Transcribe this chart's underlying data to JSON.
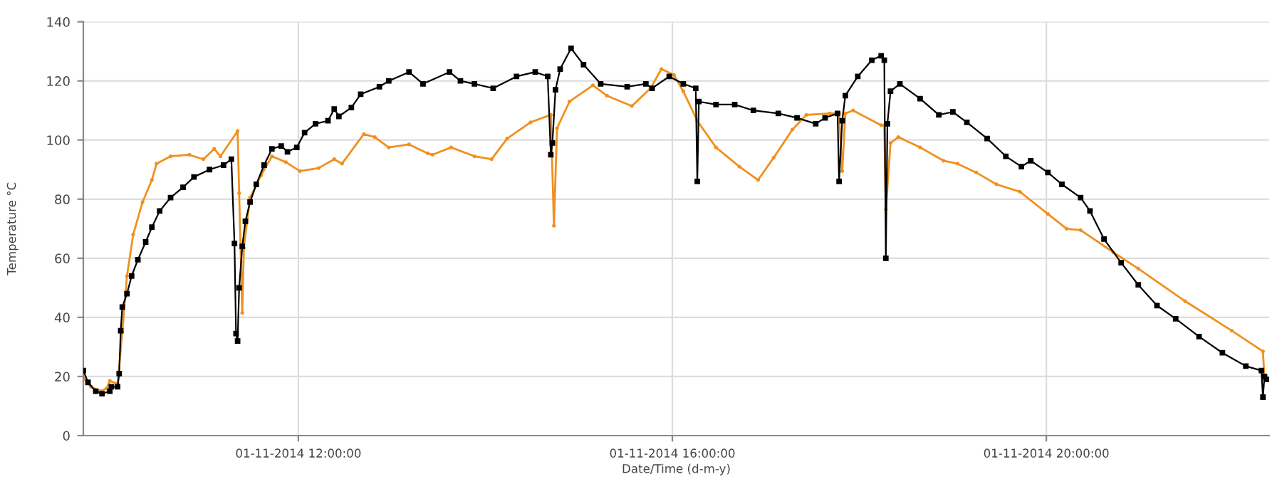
{
  "chart_data": {
    "type": "line",
    "xlabel": "Date/Time (d-m-y)",
    "ylabel": "Temperature °C",
    "xlim": [
      "2014-11-01T09:42",
      "2014-11-01T22:23"
    ],
    "xticks": [
      {
        "value": "2014-11-01T12:00",
        "label": "01-11-2014 12:00:00"
      },
      {
        "value": "2014-11-01T16:00",
        "label": "01-11-2014 16:00:00"
      },
      {
        "value": "2014-11-01T20:00",
        "label": "01-11-2014 20:00:00"
      }
    ],
    "ylim": [
      0,
      140
    ],
    "yticks": [
      0,
      20,
      40,
      60,
      80,
      100,
      120,
      140
    ],
    "grid": true,
    "line_style": "solid",
    "series": [
      {
        "color": "#000000",
        "marker": "square",
        "x": [
          "2014-11-01T09:42",
          "2014-11-01T09:45",
          "2014-11-01T09:50",
          "2014-11-01T09:54",
          "2014-11-01T09:59",
          "2014-11-01T10:00",
          "2014-11-01T10:04",
          "2014-11-01T10:05",
          "2014-11-01T10:06",
          "2014-11-01T10:07",
          "2014-11-01T10:10",
          "2014-11-01T10:13",
          "2014-11-01T10:17",
          "2014-11-01T10:22",
          "2014-11-01T10:26",
          "2014-11-01T10:31",
          "2014-11-01T10:38",
          "2014-11-01T10:46",
          "2014-11-01T10:53",
          "2014-11-01T11:03",
          "2014-11-01T11:12",
          "2014-11-01T11:17",
          "2014-11-01T11:19",
          "2014-11-01T11:20",
          "2014-11-01T11:21",
          "2014-11-01T11:22",
          "2014-11-01T11:24",
          "2014-11-01T11:26",
          "2014-11-01T11:29",
          "2014-11-01T11:33",
          "2014-11-01T11:38",
          "2014-11-01T11:43",
          "2014-11-01T11:49",
          "2014-11-01T11:53",
          "2014-11-01T11:59",
          "2014-11-01T12:04",
          "2014-11-01T12:11",
          "2014-11-01T12:19",
          "2014-11-01T12:23",
          "2014-11-01T12:26",
          "2014-11-01T12:34",
          "2014-11-01T12:40",
          "2014-11-01T12:52",
          "2014-11-01T12:58",
          "2014-11-01T13:11",
          "2014-11-01T13:20",
          "2014-11-01T13:37",
          "2014-11-01T13:44",
          "2014-11-01T13:53",
          "2014-11-01T14:05",
          "2014-11-01T14:20",
          "2014-11-01T14:32",
          "2014-11-01T14:40",
          "2014-11-01T14:42",
          "2014-11-01T14:43",
          "2014-11-01T14:45",
          "2014-11-01T14:48",
          "2014-11-01T14:55",
          "2014-11-01T15:03",
          "2014-11-01T15:14",
          "2014-11-01T15:31",
          "2014-11-01T15:43",
          "2014-11-01T15:47",
          "2014-11-01T15:58",
          "2014-11-01T16:07",
          "2014-11-01T16:15",
          "2014-11-01T16:16",
          "2014-11-01T16:17",
          "2014-11-01T16:28",
          "2014-11-01T16:40",
          "2014-11-01T16:52",
          "2014-11-01T17:08",
          "2014-11-01T17:20",
          "2014-11-01T17:32",
          "2014-11-01T17:38",
          "2014-11-01T17:46",
          "2014-11-01T17:47",
          "2014-11-01T17:49",
          "2014-11-01T17:51",
          "2014-11-01T17:59",
          "2014-11-01T18:08",
          "2014-11-01T18:14",
          "2014-11-01T18:16",
          "2014-11-01T18:17",
          "2014-11-01T18:18",
          "2014-11-01T18:20",
          "2014-11-01T18:26",
          "2014-11-01T18:39",
          "2014-11-01T18:51",
          "2014-11-01T19:00",
          "2014-11-01T19:09",
          "2014-11-01T19:22",
          "2014-11-01T19:34",
          "2014-11-01T19:44",
          "2014-11-01T19:50",
          "2014-11-01T20:01",
          "2014-11-01T20:10",
          "2014-11-01T20:22",
          "2014-11-01T20:28",
          "2014-11-01T20:37",
          "2014-11-01T20:48",
          "2014-11-01T20:59",
          "2014-11-01T21:11",
          "2014-11-01T21:23",
          "2014-11-01T21:38",
          "2014-11-01T21:53",
          "2014-11-01T22:08",
          "2014-11-01T22:18",
          "2014-11-01T22:19",
          "2014-11-01T22:20",
          "2014-11-01T22:22"
        ],
        "values": [
          22,
          18,
          15,
          14.2,
          15,
          16.5,
          16.5,
          21,
          35.5,
          43.5,
          48,
          54,
          59.5,
          65.5,
          70.5,
          76,
          80.5,
          84,
          87.5,
          90,
          91.5,
          93.5,
          65,
          34.5,
          32,
          50,
          64,
          72.5,
          79,
          85,
          91.5,
          97,
          98,
          96,
          97.5,
          102.5,
          105.5,
          106.5,
          110.5,
          108,
          111,
          115.5,
          118,
          120,
          123,
          119,
          123,
          120,
          119,
          117.5,
          121.5,
          123,
          121.5,
          95,
          99,
          117,
          124,
          131,
          125.5,
          119,
          118,
          119,
          117.5,
          121.5,
          119,
          117.5,
          86,
          113,
          112,
          112,
          110,
          109,
          107.5,
          105.5,
          107.5,
          109,
          86,
          106.5,
          115,
          121.5,
          127,
          128.5,
          127,
          60,
          105.5,
          116.5,
          119,
          114,
          108.5,
          109.5,
          106,
          100.5,
          94.5,
          91,
          93,
          89,
          85,
          80.5,
          76,
          66.5,
          58.5,
          51,
          44,
          39.5,
          33.5,
          28,
          23.5,
          22,
          13,
          20,
          19
        ]
      },
      {
        "color": "#f0901e",
        "marker": "circle",
        "x": [
          "2014-11-01T09:42",
          "2014-11-01T09:47",
          "2014-11-01T09:53",
          "2014-11-01T09:57",
          "2014-11-01T09:59",
          "2014-11-01T10:04",
          "2014-11-01T10:07",
          "2014-11-01T10:10",
          "2014-11-01T10:14",
          "2014-11-01T10:20",
          "2014-11-01T10:26",
          "2014-11-01T10:29",
          "2014-11-01T10:38",
          "2014-11-01T10:50",
          "2014-11-01T10:59",
          "2014-11-01T11:06",
          "2014-11-01T11:10",
          "2014-11-01T11:21",
          "2014-11-01T11:22",
          "2014-11-01T11:24",
          "2014-11-01T11:25",
          "2014-11-01T11:29",
          "2014-11-01T11:36",
          "2014-11-01T11:43",
          "2014-11-01T11:52",
          "2014-11-01T12:01",
          "2014-11-01T12:13",
          "2014-11-01T12:23",
          "2014-11-01T12:28",
          "2014-11-01T12:42",
          "2014-11-01T12:49",
          "2014-11-01T12:58",
          "2014-11-01T13:11",
          "2014-11-01T13:23",
          "2014-11-01T13:26",
          "2014-11-01T13:38",
          "2014-11-01T13:53",
          "2014-11-01T14:04",
          "2014-11-01T14:14",
          "2014-11-01T14:29",
          "2014-11-01T14:42",
          "2014-11-01T14:44",
          "2014-11-01T14:46",
          "2014-11-01T14:54",
          "2014-11-01T15:09",
          "2014-11-01T15:18",
          "2014-11-01T15:34",
          "2014-11-01T15:46",
          "2014-11-01T15:53",
          "2014-11-01T16:01",
          "2014-11-01T16:07",
          "2014-11-01T16:16",
          "2014-11-01T16:28",
          "2014-11-01T16:43",
          "2014-11-01T16:55",
          "2014-11-01T17:05",
          "2014-11-01T17:17",
          "2014-11-01T17:26",
          "2014-11-01T17:41",
          "2014-11-01T17:47",
          "2014-11-01T17:49",
          "2014-11-01T17:51",
          "2014-11-01T17:56",
          "2014-11-01T18:14",
          "2014-11-01T18:16",
          "2014-11-01T18:17",
          "2014-11-01T18:20",
          "2014-11-01T18:25",
          "2014-11-01T18:39",
          "2014-11-01T18:54",
          "2014-11-01T19:03",
          "2014-11-01T19:15",
          "2014-11-01T19:28",
          "2014-11-01T19:43",
          "2014-11-01T20:01",
          "2014-11-01T20:13",
          "2014-11-01T20:22",
          "2014-11-01T20:43",
          "2014-11-01T20:59",
          "2014-11-01T21:29",
          "2014-11-01T21:59",
          "2014-11-01T22:19",
          "2014-11-01T22:20"
        ],
        "values": [
          19.5,
          16.5,
          15,
          16,
          18.5,
          17.5,
          35,
          54,
          68,
          79,
          86.5,
          92,
          94.5,
          95,
          93.5,
          97,
          94.5,
          103,
          82,
          41.5,
          63.5,
          80.5,
          88,
          94.5,
          92.5,
          89.5,
          90.5,
          93.5,
          92,
          102,
          101,
          97.5,
          98.5,
          95.5,
          95,
          97.5,
          94.5,
          93.5,
          100.5,
          106,
          108.5,
          71,
          104,
          113,
          118.5,
          115,
          111.5,
          117.5,
          124,
          122,
          116.5,
          106.5,
          97.5,
          91,
          86.5,
          94,
          103.5,
          108.5,
          109,
          109,
          89.5,
          109,
          110,
          105,
          105,
          76.5,
          99,
          101,
          97.5,
          93,
          92,
          89,
          85,
          82.5,
          75,
          70,
          69.5,
          62,
          56.5,
          45.5,
          35.5,
          28.5,
          19
        ]
      }
    ]
  }
}
